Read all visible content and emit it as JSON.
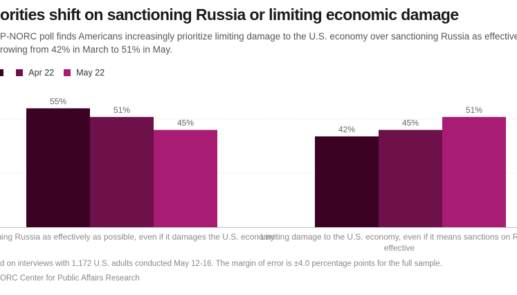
{
  "title": "orities shift on sanctioning Russia or limiting economic damage",
  "subtitle_lines": [
    "P-NORC poll finds Americans increasingly prioritize limiting damage to the U.S. economy over sanctioning Russia as effectively as possible for its",
    "rowing from 42% in March to 51% in May."
  ],
  "footer": {
    "note": "d on interviews with 1,172 U.S. adults conducted May 12-16. The margin of error is ±4.0 percentage points for the full sample.",
    "source": "ORC Center for Public Affairs Research"
  },
  "chart_data": {
    "type": "bar",
    "categories": [
      "anctioning Russia as effectively as possible, even if it damages the U.S. economy",
      "Limiting damage to the U.S. economy, even if it means sanctions on Russia are less effective"
    ],
    "category_label_lines": [
      [
        "anctioning Russia as effectively as possible, even if it damages the U.S. economy"
      ],
      [
        "Limiting damage to the U.S. economy, even if it means sanctions on Russia",
        "effective"
      ]
    ],
    "series": [
      {
        "name": "",
        "values": [
          55,
          42
        ],
        "labels": [
          "55%",
          "42%"
        ],
        "color": "#3b0224"
      },
      {
        "name": "Apr 22",
        "values": [
          51,
          45
        ],
        "labels": [
          "51%",
          "45%"
        ],
        "color": "#6e1049"
      },
      {
        "name": "May 22",
        "values": [
          45,
          51
        ],
        "labels": [
          "45%",
          "51%"
        ],
        "color": "#a81c73"
      }
    ],
    "ylim": [
      0,
      100
    ],
    "grid": true,
    "legend": "top-left"
  }
}
